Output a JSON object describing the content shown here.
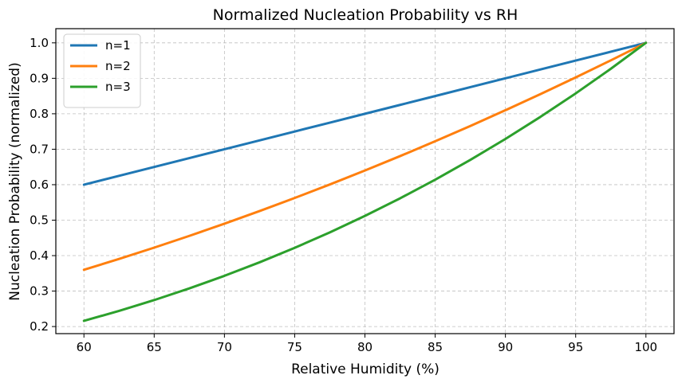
{
  "chart_data": {
    "type": "line",
    "title": "Normalized Nucleation Probability vs RH",
    "xlabel": "Relative Humidity (%)",
    "ylabel": "Nucleation Probability (normalized)",
    "xlim": [
      58,
      102
    ],
    "ylim": [
      0.18,
      1.04
    ],
    "xticks": [
      60,
      65,
      70,
      75,
      80,
      85,
      90,
      95,
      100
    ],
    "yticks": [
      0.2,
      0.3,
      0.4,
      0.5,
      0.6,
      0.7,
      0.8,
      0.9,
      1.0
    ],
    "ytick_labels": [
      "0.2",
      "0.3",
      "0.4",
      "0.5",
      "0.6",
      "0.7",
      "0.8",
      "0.9",
      "1.0"
    ],
    "grid": true,
    "legend_position": "top-left",
    "x": [
      60,
      62.5,
      65,
      67.5,
      70,
      72.5,
      75,
      77.5,
      80,
      82.5,
      85,
      87.5,
      90,
      92.5,
      95,
      97.5,
      100
    ],
    "series": [
      {
        "name": "n=1",
        "color": "#1f77b4",
        "values": [
          0.6,
          0.625,
          0.65,
          0.675,
          0.7,
          0.725,
          0.75,
          0.775,
          0.8,
          0.825,
          0.85,
          0.875,
          0.9,
          0.925,
          0.95,
          0.975,
          1.0
        ]
      },
      {
        "name": "n=2",
        "color": "#ff7f0e",
        "values": [
          0.36,
          0.3906,
          0.4225,
          0.4556,
          0.49,
          0.5256,
          0.5625,
          0.6006,
          0.64,
          0.6806,
          0.7225,
          0.7656,
          0.81,
          0.8556,
          0.9025,
          0.9506,
          1.0
        ]
      },
      {
        "name": "n=3",
        "color": "#2ca02c",
        "values": [
          0.216,
          0.2441,
          0.2746,
          0.3075,
          0.343,
          0.3811,
          0.4219,
          0.4655,
          0.512,
          0.5615,
          0.6141,
          0.6699,
          0.729,
          0.7915,
          0.8574,
          0.9269,
          1.0
        ]
      }
    ]
  }
}
